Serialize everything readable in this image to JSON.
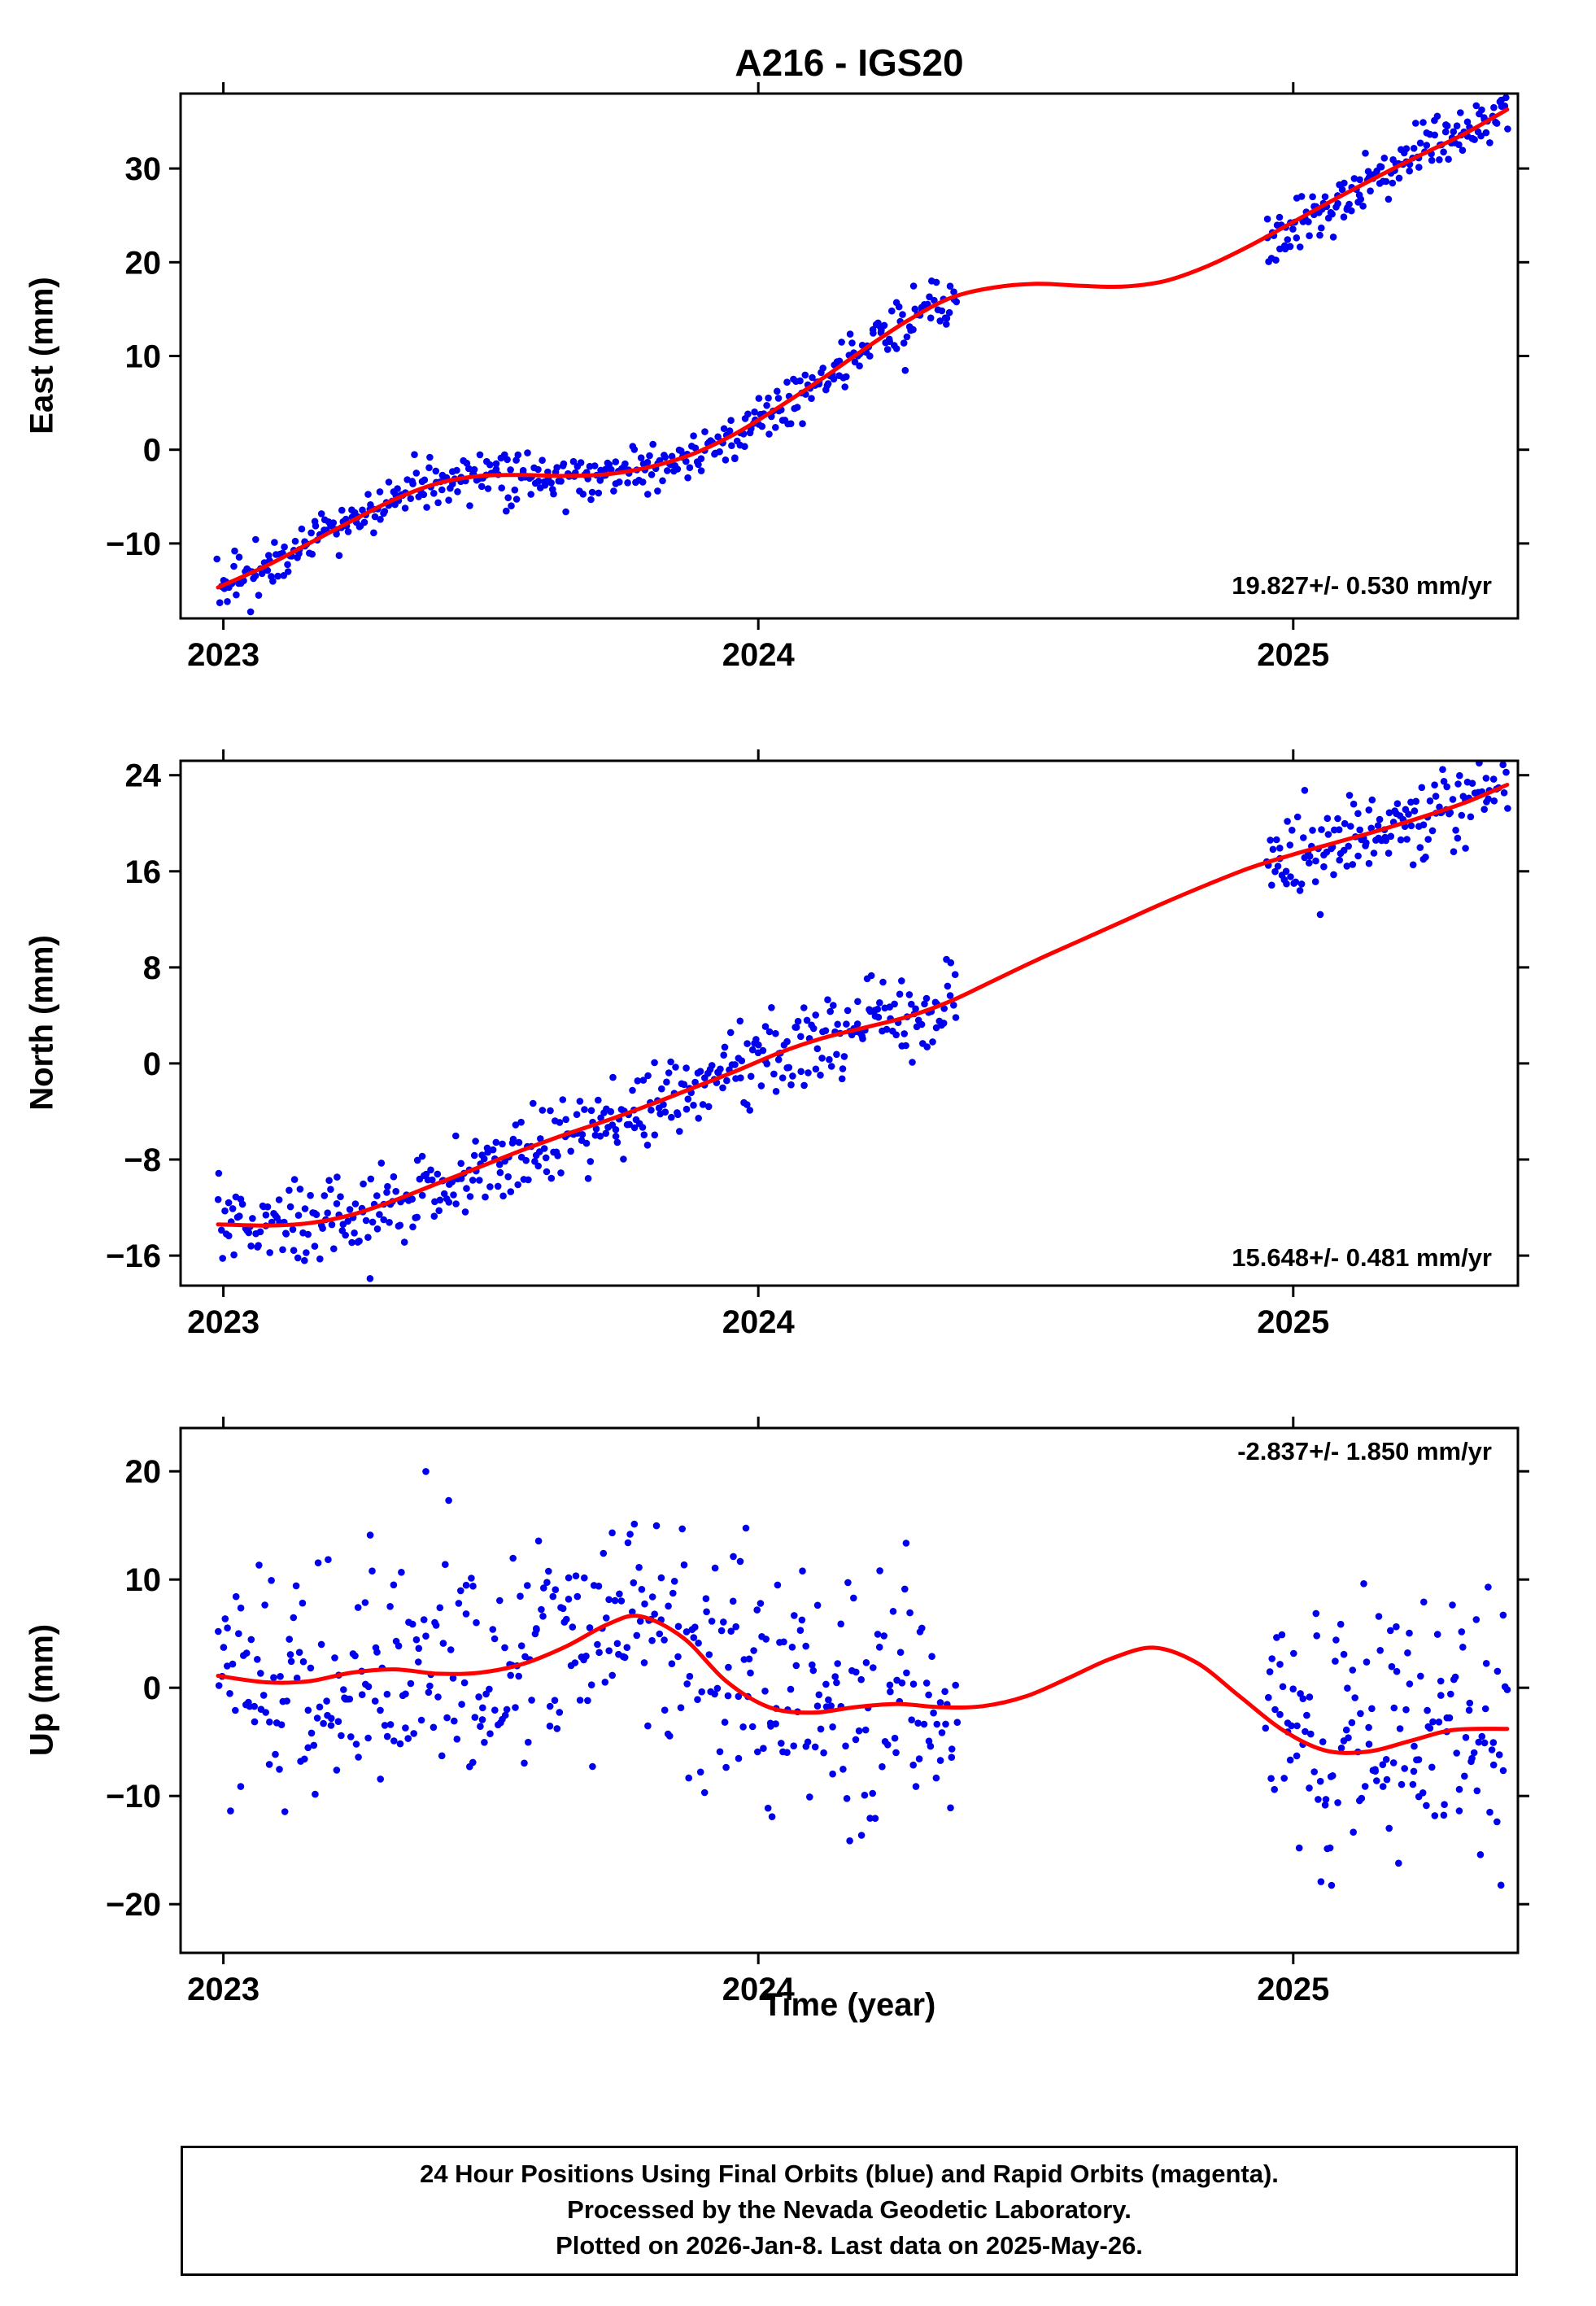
{
  "title": "A216 - IGS20",
  "xlabel": "Time (year)",
  "colors": {
    "marker": "#0000ee",
    "trend": "#ff0000",
    "frame": "#000000",
    "background": "#ffffff"
  },
  "footer": {
    "lines": [
      "24 Hour Positions Using Final Orbits (blue) and Rapid Orbits (magenta).",
      "Processed by the Nevada Geodetic Laboratory.",
      "Plotted on 2026-Jan-8. Last data on 2025-May-26."
    ]
  },
  "chart_data": [
    {
      "id": "east",
      "type": "scatter",
      "ylabel": "East (mm)",
      "annotation": "19.827+/- 0.530 mm/yr",
      "annotation_pos": "bottom-right",
      "xlim": [
        2022.92,
        2025.42
      ],
      "ylim": [
        -18,
        38
      ],
      "xticks": [
        2023,
        2024,
        2025
      ],
      "yticks": [
        -10,
        0,
        10,
        20,
        30
      ],
      "trend_line": [
        [
          2022.99,
          -14.7
        ],
        [
          2023.08,
          -12.4
        ],
        [
          2023.16,
          -10.0
        ],
        [
          2023.24,
          -7.6
        ],
        [
          2023.32,
          -5.3
        ],
        [
          2023.4,
          -3.6
        ],
        [
          2023.48,
          -2.8
        ],
        [
          2023.56,
          -2.7
        ],
        [
          2023.64,
          -2.8
        ],
        [
          2023.72,
          -2.6
        ],
        [
          2023.8,
          -1.8
        ],
        [
          2023.88,
          -0.4
        ],
        [
          2023.96,
          1.8
        ],
        [
          2024.04,
          4.6
        ],
        [
          2024.12,
          7.6
        ],
        [
          2024.2,
          10.8
        ],
        [
          2024.28,
          13.8
        ],
        [
          2024.36,
          16.2
        ],
        [
          2024.44,
          17.3
        ],
        [
          2024.52,
          17.7
        ],
        [
          2024.6,
          17.5
        ],
        [
          2024.68,
          17.4
        ],
        [
          2024.76,
          18.0
        ],
        [
          2024.84,
          19.6
        ],
        [
          2024.92,
          21.8
        ],
        [
          2025.0,
          24.3
        ],
        [
          2025.08,
          26.8
        ],
        [
          2025.16,
          29.2
        ],
        [
          2025.24,
          31.5
        ],
        [
          2025.32,
          33.7
        ],
        [
          2025.4,
          36.3
        ]
      ],
      "scatter": {
        "seed": 7,
        "sigma": 1.3,
        "outlier_fraction": 0.02,
        "outlier_extra_sigma": 1.6,
        "segments": [
          {
            "start": 2022.99,
            "end": 2024.37,
            "count": 440
          },
          {
            "start": 2024.95,
            "end": 2025.4,
            "count": 155
          }
        ]
      }
    },
    {
      "id": "north",
      "type": "scatter",
      "ylabel": "North (mm)",
      "annotation": "15.648+/- 0.481 mm/yr",
      "annotation_pos": "bottom-right",
      "xlim": [
        2022.92,
        2025.42
      ],
      "ylim": [
        -18.5,
        25.2
      ],
      "xticks": [
        2023,
        2024,
        2025
      ],
      "yticks": [
        -16,
        -8,
        0,
        8,
        16,
        24
      ],
      "trend_line": [
        [
          2022.99,
          -13.4
        ],
        [
          2023.08,
          -13.5
        ],
        [
          2023.16,
          -13.3
        ],
        [
          2023.24,
          -12.6
        ],
        [
          2023.32,
          -11.4
        ],
        [
          2023.4,
          -10.0
        ],
        [
          2023.48,
          -8.6
        ],
        [
          2023.56,
          -7.2
        ],
        [
          2023.64,
          -5.9
        ],
        [
          2023.72,
          -4.7
        ],
        [
          2023.8,
          -3.4
        ],
        [
          2023.88,
          -2.0
        ],
        [
          2023.96,
          -0.6
        ],
        [
          2024.04,
          0.9
        ],
        [
          2024.12,
          2.1
        ],
        [
          2024.2,
          3.0
        ],
        [
          2024.28,
          3.9
        ],
        [
          2024.36,
          5.2
        ],
        [
          2024.44,
          6.9
        ],
        [
          2024.52,
          8.6
        ],
        [
          2024.6,
          10.2
        ],
        [
          2024.68,
          11.8
        ],
        [
          2024.76,
          13.4
        ],
        [
          2024.84,
          14.9
        ],
        [
          2024.92,
          16.3
        ],
        [
          2025.0,
          17.4
        ],
        [
          2025.08,
          18.4
        ],
        [
          2025.16,
          19.4
        ],
        [
          2025.24,
          20.5
        ],
        [
          2025.32,
          21.7
        ],
        [
          2025.4,
          23.2
        ]
      ],
      "scatter": {
        "seed": 13,
        "sigma": 1.6,
        "outlier_fraction": 0.03,
        "outlier_extra_sigma": 2.0,
        "segments": [
          {
            "start": 2022.99,
            "end": 2024.37,
            "count": 440
          },
          {
            "start": 2024.95,
            "end": 2025.4,
            "count": 155
          }
        ]
      }
    },
    {
      "id": "up",
      "type": "scatter",
      "ylabel": "Up (mm)",
      "annotation": "-2.837+/- 1.850 mm/yr",
      "annotation_pos": "top-right",
      "xlim": [
        2022.92,
        2025.42
      ],
      "ylim": [
        -24.5,
        24
      ],
      "xticks": [
        2023,
        2024,
        2025
      ],
      "yticks": [
        -20,
        -10,
        0,
        10,
        20
      ],
      "trend_line": [
        [
          2022.99,
          1.1
        ],
        [
          2023.08,
          0.5
        ],
        [
          2023.16,
          0.6
        ],
        [
          2023.24,
          1.4
        ],
        [
          2023.32,
          1.7
        ],
        [
          2023.4,
          1.3
        ],
        [
          2023.48,
          1.4
        ],
        [
          2023.56,
          2.2
        ],
        [
          2023.64,
          3.8
        ],
        [
          2023.72,
          5.9
        ],
        [
          2023.78,
          6.6
        ],
        [
          2023.86,
          4.6
        ],
        [
          2023.94,
          0.6
        ],
        [
          2024.02,
          -1.8
        ],
        [
          2024.1,
          -2.3
        ],
        [
          2024.18,
          -1.8
        ],
        [
          2024.26,
          -1.5
        ],
        [
          2024.34,
          -1.8
        ],
        [
          2024.42,
          -1.7
        ],
        [
          2024.5,
          -0.8
        ],
        [
          2024.58,
          0.9
        ],
        [
          2024.66,
          2.7
        ],
        [
          2024.74,
          3.7
        ],
        [
          2024.82,
          2.3
        ],
        [
          2024.9,
          -0.8
        ],
        [
          2024.98,
          -3.9
        ],
        [
          2025.06,
          -5.8
        ],
        [
          2025.14,
          -5.9
        ],
        [
          2025.22,
          -4.9
        ],
        [
          2025.3,
          -3.9
        ],
        [
          2025.4,
          -3.8
        ]
      ],
      "scatter": {
        "seed": 42,
        "sigma": 5.4,
        "outlier_fraction": 0.08,
        "outlier_extra_sigma": 8.0,
        "segments": [
          {
            "start": 2022.99,
            "end": 2024.37,
            "count": 440
          },
          {
            "start": 2024.95,
            "end": 2025.4,
            "count": 155
          }
        ]
      }
    }
  ]
}
